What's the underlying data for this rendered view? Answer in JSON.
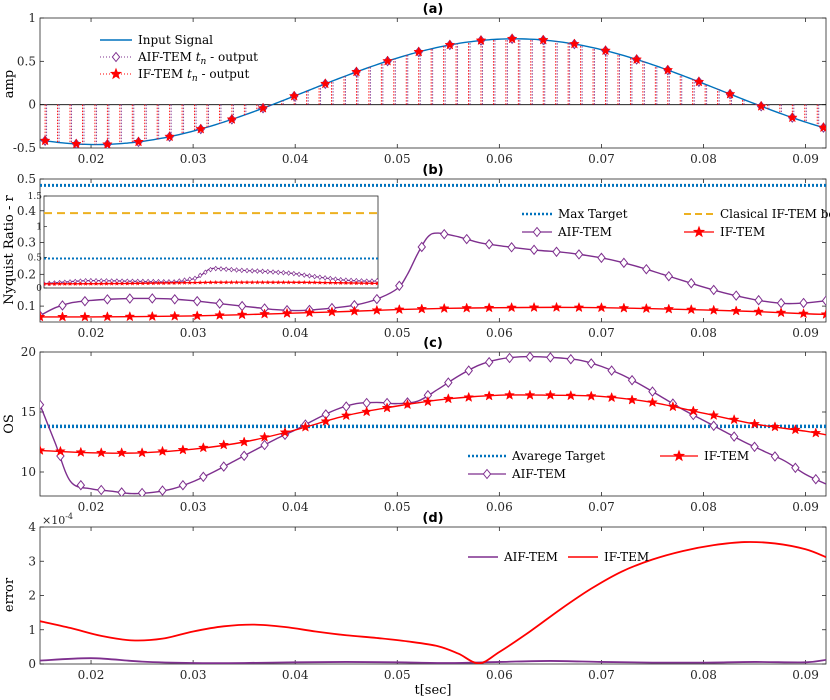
{
  "xlabel": "t[sec]",
  "chart_data": [
    {
      "type": "line",
      "title": "(a)",
      "xlabel": "",
      "ylabel": "amp",
      "xlim": [
        0.015,
        0.092
      ],
      "ylim": [
        -0.5,
        1
      ],
      "xticks": [
        0.02,
        0.03,
        0.04,
        0.05,
        0.06,
        0.07,
        0.08,
        0.09
      ],
      "yticks": [
        -0.5,
        0,
        0.5,
        1
      ],
      "ytick_labels": [
        "-0.5",
        "0",
        "0.5",
        "1"
      ],
      "signal": {
        "amplitude": 0.61,
        "offset": 0.15,
        "peak_t": 0.0615,
        "period": 0.082
      },
      "samples_t_start": 0.0155,
      "samples_t_end": 0.092,
      "samples_spacing": 0.00122,
      "legend": {
        "position": "top-left",
        "entries": [
          {
            "label": "Input Signal",
            "color": "#0072BD",
            "style": "line"
          },
          {
            "label": "AIF-TEM t_n - output",
            "color": "#7E2F8E",
            "style": "diamond-dotted"
          },
          {
            "label": "IF-TEM t_n - output",
            "color": "#FF0000",
            "style": "star-dotted"
          }
        ]
      },
      "series": [
        {
          "name": "Input Signal",
          "color": "#0072BD"
        },
        {
          "name": "AIF-TEM t_n - output",
          "color": "#7E2F8E"
        },
        {
          "name": "IF-TEM t_n - output",
          "color": "#FF0000"
        }
      ]
    },
    {
      "type": "line",
      "title": "(b)",
      "xlabel": "",
      "ylabel": "Nyquist Ratio - r",
      "xlim": [
        0.015,
        0.092
      ],
      "ylim": [
        0.05,
        0.5
      ],
      "xticks": [
        0.02,
        0.03,
        0.04,
        0.05,
        0.06,
        0.07,
        0.08,
        0.09
      ],
      "yticks": [
        0.1,
        0.2,
        0.3,
        0.4,
        0.5
      ],
      "ytick_labels": [
        "0.1",
        "0.2",
        "0.3",
        "0.4",
        "0.5"
      ],
      "hlines": [
        {
          "name": "Max Target",
          "y": 0.48,
          "color": "#0072BD",
          "style": "dotted"
        }
      ],
      "legend": {
        "position": "center-right",
        "entries": [
          {
            "label": "Max Target",
            "color": "#0072BD",
            "style": "dotted"
          },
          {
            "label": "Clasical IF-TEM bound",
            "color": "#EDB120",
            "style": "dashed"
          },
          {
            "label": "AIF-TEM",
            "color": "#7E2F8E",
            "style": "diamond"
          },
          {
            "label": "IF-TEM",
            "color": "#FF0000",
            "style": "star"
          }
        ]
      },
      "series": [
        {
          "name": "AIF-TEM",
          "color": "#7E2F8E",
          "marker": "diamond",
          "x": [
            0.015,
            0.0165,
            0.018,
            0.02,
            0.022,
            0.024,
            0.026,
            0.028,
            0.03,
            0.032,
            0.034,
            0.036,
            0.038,
            0.04,
            0.042,
            0.044,
            0.046,
            0.048,
            0.05,
            0.051,
            0.052,
            0.053,
            0.054,
            0.056,
            0.058,
            0.06,
            0.062,
            0.064,
            0.066,
            0.068,
            0.07,
            0.072,
            0.074,
            0.076,
            0.078,
            0.08,
            0.082,
            0.084,
            0.086,
            0.088,
            0.09,
            0.092
          ],
          "y": [
            0.07,
            0.095,
            0.11,
            0.118,
            0.122,
            0.124,
            0.124,
            0.122,
            0.117,
            0.11,
            0.103,
            0.096,
            0.089,
            0.086,
            0.089,
            0.095,
            0.104,
            0.122,
            0.155,
            0.2,
            0.265,
            0.318,
            0.33,
            0.318,
            0.3,
            0.29,
            0.282,
            0.275,
            0.27,
            0.262,
            0.252,
            0.238,
            0.22,
            0.2,
            0.18,
            0.16,
            0.142,
            0.127,
            0.115,
            0.108,
            0.11,
            0.117
          ]
        },
        {
          "name": "IF-TEM",
          "color": "#FF0000",
          "marker": "star",
          "x": [
            0.015,
            0.02,
            0.025,
            0.03,
            0.035,
            0.04,
            0.045,
            0.05,
            0.055,
            0.06,
            0.065,
            0.07,
            0.075,
            0.08,
            0.085,
            0.09,
            0.092
          ],
          "y": [
            0.066,
            0.066,
            0.067,
            0.069,
            0.073,
            0.078,
            0.083,
            0.089,
            0.093,
            0.095,
            0.096,
            0.095,
            0.092,
            0.088,
            0.083,
            0.076,
            0.074
          ]
        }
      ],
      "inset": {
        "xlim": [
          0.015,
          0.092
        ],
        "ylim": [
          0,
          1.5
        ],
        "yticks": [
          0,
          0.5,
          1,
          1.5
        ],
        "ytick_labels": [
          "0",
          "0.5",
          "1",
          "1.5"
        ],
        "hlines": [
          {
            "name": "Max Target",
            "y": 0.48,
            "color": "#0072BD",
            "style": "dotted"
          },
          {
            "name": "Clasical IF-TEM bound",
            "y": 1.22,
            "color": "#EDB120",
            "style": "dashed"
          }
        ],
        "series": [
          {
            "name": "AIF-TEM",
            "color": "#7E2F8E",
            "x": [
              0.015,
              0.025,
              0.035,
              0.045,
              0.05,
              0.052,
              0.054,
              0.06,
              0.066,
              0.072,
              0.078,
              0.084,
              0.09,
              0.092
            ],
            "y": [
              0.07,
              0.12,
              0.11,
              0.1,
              0.16,
              0.25,
              0.32,
              0.29,
              0.27,
              0.24,
              0.18,
              0.13,
              0.11,
              0.12
            ]
          },
          {
            "name": "IF-TEM",
            "color": "#FF0000",
            "x": [
              0.015,
              0.035,
              0.055,
              0.075,
              0.092
            ],
            "y": [
              0.066,
              0.073,
              0.093,
              0.092,
              0.074
            ]
          }
        ]
      }
    },
    {
      "type": "line",
      "title": "(c)",
      "xlabel": "",
      "ylabel": "OS",
      "xlim": [
        0.015,
        0.092
      ],
      "ylim": [
        8,
        20
      ],
      "xticks": [
        0.02,
        0.03,
        0.04,
        0.05,
        0.06,
        0.07,
        0.08,
        0.09
      ],
      "yticks": [
        10,
        15,
        20
      ],
      "ytick_labels": [
        "10",
        "15",
        "20"
      ],
      "hlines": [
        {
          "name": "Avarege Target",
          "y": 13.8,
          "color": "#0072BD",
          "style": "dotted"
        }
      ],
      "legend": {
        "position": "lower-right",
        "entries": [
          {
            "label": "Avarege Target",
            "color": "#0072BD",
            "style": "dotted"
          },
          {
            "label": "IF-TEM",
            "color": "#FF0000",
            "style": "star"
          },
          {
            "label": "AIF-TEM",
            "color": "#7E2F8E",
            "style": "diamond"
          }
        ]
      },
      "series": [
        {
          "name": "AIF-TEM",
          "color": "#7E2F8E",
          "marker": "diamond",
          "x": [
            0.015,
            0.0165,
            0.018,
            0.02,
            0.022,
            0.024,
            0.026,
            0.028,
            0.03,
            0.032,
            0.034,
            0.036,
            0.038,
            0.04,
            0.042,
            0.044,
            0.046,
            0.048,
            0.05,
            0.052,
            0.054,
            0.056,
            0.058,
            0.06,
            0.062,
            0.064,
            0.066,
            0.068,
            0.07,
            0.072,
            0.074,
            0.076,
            0.078,
            0.08,
            0.082,
            0.084,
            0.086,
            0.088,
            0.09,
            0.092
          ],
          "y": [
            15.6,
            12.4,
            9.2,
            8.6,
            8.4,
            8.2,
            8.3,
            8.6,
            9.2,
            10.0,
            10.9,
            11.8,
            12.7,
            13.5,
            14.4,
            15.2,
            15.7,
            15.8,
            15.7,
            15.9,
            16.9,
            18.0,
            18.9,
            19.4,
            19.6,
            19.6,
            19.5,
            19.3,
            18.8,
            18.1,
            17.2,
            16.2,
            15.2,
            14.3,
            13.4,
            12.5,
            11.7,
            10.9,
            9.8,
            9.0
          ]
        },
        {
          "name": "IF-TEM",
          "color": "#FF0000",
          "marker": "star",
          "x": [
            0.015,
            0.02,
            0.025,
            0.03,
            0.035,
            0.04,
            0.045,
            0.05,
            0.055,
            0.06,
            0.065,
            0.07,
            0.075,
            0.08,
            0.085,
            0.09,
            0.092
          ],
          "y": [
            11.8,
            11.6,
            11.6,
            11.9,
            12.5,
            13.5,
            14.7,
            15.5,
            16.1,
            16.4,
            16.4,
            16.3,
            15.8,
            14.9,
            14.0,
            13.4,
            13.1
          ]
        }
      ]
    },
    {
      "type": "line",
      "title": "(d)",
      "xlabel": "t[sec]",
      "ylabel": "error",
      "xlim": [
        0.015,
        0.092
      ],
      "ylim": [
        0,
        4
      ],
      "xticks": [
        0.02,
        0.03,
        0.04,
        0.05,
        0.06,
        0.07,
        0.08,
        0.09
      ],
      "yticks": [
        0,
        1,
        2,
        3,
        4
      ],
      "ytick_labels": [
        "0",
        "1",
        "2",
        "3",
        "4"
      ],
      "y_exponent_label": "×10",
      "y_exponent_power": "-4",
      "legend": {
        "position": "top-center",
        "entries": [
          {
            "label": "AIF-TEM",
            "color": "#7E2F8E",
            "style": "line"
          },
          {
            "label": "IF-TEM",
            "color": "#FF0000",
            "style": "line"
          }
        ]
      },
      "series": [
        {
          "name": "AIF-TEM",
          "color": "#7E2F8E",
          "x": [
            0.015,
            0.02,
            0.025,
            0.03,
            0.035,
            0.04,
            0.045,
            0.05,
            0.055,
            0.06,
            0.065,
            0.07,
            0.075,
            0.08,
            0.085,
            0.09,
            0.092
          ],
          "y": [
            0.1,
            0.17,
            0.07,
            0.03,
            0.03,
            0.05,
            0.06,
            0.05,
            0.03,
            0.06,
            0.09,
            0.06,
            0.04,
            0.04,
            0.06,
            0.05,
            0.12
          ]
        },
        {
          "name": "IF-TEM",
          "color": "#FF0000",
          "x": [
            0.015,
            0.018,
            0.021,
            0.024,
            0.027,
            0.03,
            0.033,
            0.036,
            0.039,
            0.042,
            0.045,
            0.048,
            0.051,
            0.054,
            0.056,
            0.058,
            0.06,
            0.063,
            0.066,
            0.069,
            0.072,
            0.075,
            0.078,
            0.081,
            0.084,
            0.087,
            0.09,
            0.092
          ],
          "y": [
            1.25,
            1.05,
            0.82,
            0.69,
            0.74,
            0.95,
            1.1,
            1.15,
            1.08,
            0.95,
            0.84,
            0.76,
            0.66,
            0.52,
            0.3,
            0.02,
            0.35,
            0.95,
            1.6,
            2.2,
            2.7,
            3.05,
            3.3,
            3.47,
            3.56,
            3.52,
            3.35,
            3.12
          ]
        }
      ]
    }
  ]
}
